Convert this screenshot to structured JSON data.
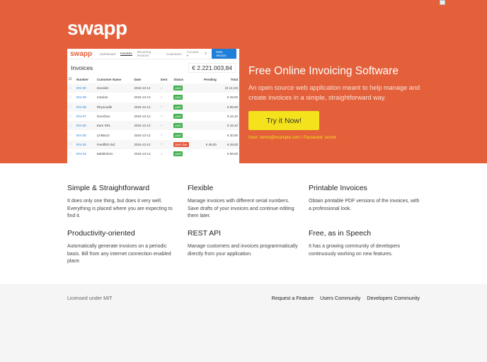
{
  "hero": {
    "logo": "swapp",
    "title": "Free Online Invoicing Software",
    "lead": "An open source web application meant to help manage and create invoices in a simple, straightforward way.",
    "cta": "Try it Now!",
    "credentials": "User: demo@example.com / Password: secret"
  },
  "screenshot": {
    "logo": "swapp",
    "nav": [
      "Dashboard",
      "Invoices",
      "Recurring Invoices",
      "Customers",
      "Account ▾"
    ],
    "new_button": "New Invoice",
    "title": "Invoices",
    "total": "€ 2.221.003,84",
    "columns": [
      "Number",
      "Customer Name",
      "Date",
      "Sent",
      "Status",
      "Pending",
      "Total"
    ],
    "rows": [
      {
        "number": "INV-30",
        "customer": "Zoonder",
        "date": "2016-13-12",
        "sent": "✓",
        "status": "paid",
        "pending": "",
        "total": "(€ 12,10)"
      },
      {
        "number": "INV-29",
        "customer": "Camido",
        "date": "2016-13-12",
        "sent": "✓",
        "status": "paid",
        "pending": "",
        "total": "€ 29,00"
      },
      {
        "number": "INV-28",
        "customer": "Rhynoodle",
        "date": "2016-13-12",
        "sent": "✓",
        "status": "paid",
        "pending": "",
        "total": "€ 99,00"
      },
      {
        "number": "INV-27",
        "customer": "Zoombox",
        "date": "2016-13-12",
        "sent": "✓",
        "status": "paid",
        "pending": "",
        "total": "€ 44,10"
      },
      {
        "number": "INV-26",
        "customer": "Eare SRL",
        "date": "2016-13-12",
        "sent": "✓",
        "status": "paid",
        "pending": "",
        "total": "€ 18,10"
      },
      {
        "number": "INV-25",
        "customer": "LinkBuzz",
        "date": "2016-13-12",
        "sent": "✓",
        "status": "paid",
        "pending": "",
        "total": "€ 20,00"
      },
      {
        "number": "INV-24",
        "customer": "Feedfish INC",
        "date": "2016-13-12",
        "sent": "✓",
        "status": "past due",
        "pending": "€ 49,00",
        "total": "€ 49,00"
      },
      {
        "number": "INV-23",
        "customer": "Babbleform",
        "date": "2016-13-12",
        "sent": "✓",
        "status": "paid",
        "pending": "",
        "total": "€ 99,00"
      }
    ]
  },
  "features": [
    {
      "title": "Simple & Straightforward",
      "text": "It does only one thing, but does it very well. Everything is placed where you are expecting to find it."
    },
    {
      "title": "Flexible",
      "text": "Manage invoices with different serial numbers. Save drafts of your invoices and continue editing them later."
    },
    {
      "title": "Printable Invoices",
      "text": "Obtain printable PDF versions of the invoices, with a professional look."
    },
    {
      "title": "Productivity-oriented",
      "text": "Automatically generate invoices on a periodic basis. Bill from any internet connection enabled place."
    },
    {
      "title": "REST API",
      "text": "Manage customers and invoices programmatically directly from your application."
    },
    {
      "title": "Free, as in Speech",
      "text": "It has a growing community of developers continuously working on new features."
    }
  ],
  "footer": {
    "license": "Licensed under MIT",
    "links": [
      "Request a Feature",
      "Users Community",
      "Developers Community"
    ]
  },
  "colors": {
    "brand": "#e3603a",
    "cta": "#f4e31c",
    "paid": "#3cae4a",
    "due": "#e2553a"
  }
}
